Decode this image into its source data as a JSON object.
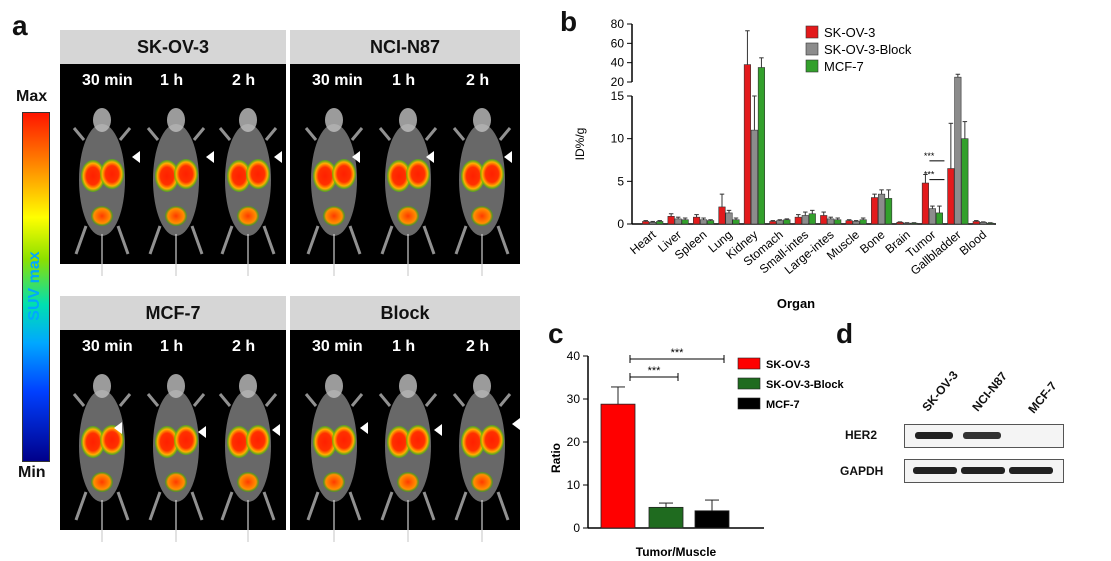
{
  "panels": {
    "a": "a",
    "b": "b",
    "c": "c",
    "d": "d"
  },
  "colorbar": {
    "max": "Max",
    "min": "Min",
    "title": "SUV max"
  },
  "imaging_groups": [
    {
      "name": "SK-OV-3",
      "timepoints": [
        "30 min",
        "1 h",
        "2 h"
      ]
    },
    {
      "name": "NCI-N87",
      "timepoints": [
        "30 min",
        "1 h",
        "2 h"
      ]
    },
    {
      "name": "MCF-7",
      "timepoints": [
        "30 min",
        "1 h",
        "2 h"
      ]
    },
    {
      "name": "Block",
      "timepoints": [
        "30 min",
        "1 h",
        "2 h"
      ]
    }
  ],
  "chart_data": [
    {
      "type": "bar",
      "panel": "b",
      "categories": [
        "Heart",
        "Liver",
        "Spleen",
        "Lung",
        "Kidney",
        "Stomach",
        "Small-intes",
        "Large-intes",
        "Muscle",
        "Bone",
        "Brain",
        "Tumor",
        "Gallbladder",
        "Blood"
      ],
      "series": [
        {
          "name": "SK-OV-3",
          "color": "#e31a1c",
          "values": [
            0.3,
            0.9,
            0.8,
            2.0,
            38,
            0.3,
            0.8,
            1.0,
            0.4,
            3.1,
            0.2,
            4.8,
            6.5,
            0.3
          ],
          "errors": [
            0.1,
            0.3,
            0.3,
            1.5,
            35,
            0.1,
            0.3,
            0.4,
            0.1,
            0.4,
            0.05,
            1.0,
            5.3,
            0.1
          ]
        },
        {
          "name": "SK-OV-3-Block",
          "color": "#8c8c8c",
          "values": [
            0.2,
            0.6,
            0.5,
            1.3,
            11,
            0.4,
            1.0,
            0.6,
            0.3,
            3.5,
            0.1,
            1.8,
            25,
            0.2
          ],
          "errors": [
            0.1,
            0.2,
            0.2,
            0.3,
            4,
            0.1,
            0.4,
            0.2,
            0.1,
            0.5,
            0.05,
            0.3,
            3,
            0.05
          ]
        },
        {
          "name": "MCF-7",
          "color": "#33a02c",
          "values": [
            0.3,
            0.5,
            0.4,
            0.5,
            35,
            0.5,
            1.2,
            0.5,
            0.5,
            3.0,
            0.1,
            1.3,
            10,
            0.1
          ],
          "errors": [
            0.1,
            0.2,
            0.1,
            0.2,
            10,
            0.1,
            0.4,
            0.2,
            0.2,
            1.0,
            0.05,
            0.8,
            2,
            0.05
          ]
        }
      ],
      "ylabel": "ID%/g",
      "xlabel": "Organ",
      "ylim_lower": [
        0,
        15
      ],
      "ylim_upper": [
        20,
        80
      ],
      "yticks": [
        "0",
        "5",
        "10",
        "15",
        "20",
        "40",
        "60",
        "80"
      ],
      "annotations": [
        "***",
        "***"
      ],
      "legend": "top-right"
    },
    {
      "type": "bar",
      "panel": "c",
      "categories": [
        "Tumor/Muscle"
      ],
      "series": [
        {
          "name": "SK-OV-3",
          "color": "#ff0000",
          "values": [
            28.8
          ],
          "errors": [
            4
          ]
        },
        {
          "name": "SK-OV-3-Block",
          "color": "#1f6b1f",
          "values": [
            4.8
          ],
          "errors": [
            1
          ]
        },
        {
          "name": "MCF-7",
          "color": "#000000",
          "values": [
            4.0
          ],
          "errors": [
            2.5
          ]
        }
      ],
      "ylabel": "Ratio",
      "ylim": [
        0,
        40
      ],
      "yticks": [
        "0",
        "10",
        "20",
        "30",
        "40"
      ],
      "annotations": [
        "***",
        "***"
      ],
      "legend": "right"
    }
  ],
  "blot": {
    "lanes": [
      "SK-OV-3",
      "NCI-N87",
      "MCF-7"
    ],
    "rows": [
      "HER2",
      "GAPDH"
    ],
    "intensity": {
      "HER2": [
        1,
        0.85,
        0
      ],
      "GAPDH": [
        1,
        1,
        1
      ]
    }
  }
}
